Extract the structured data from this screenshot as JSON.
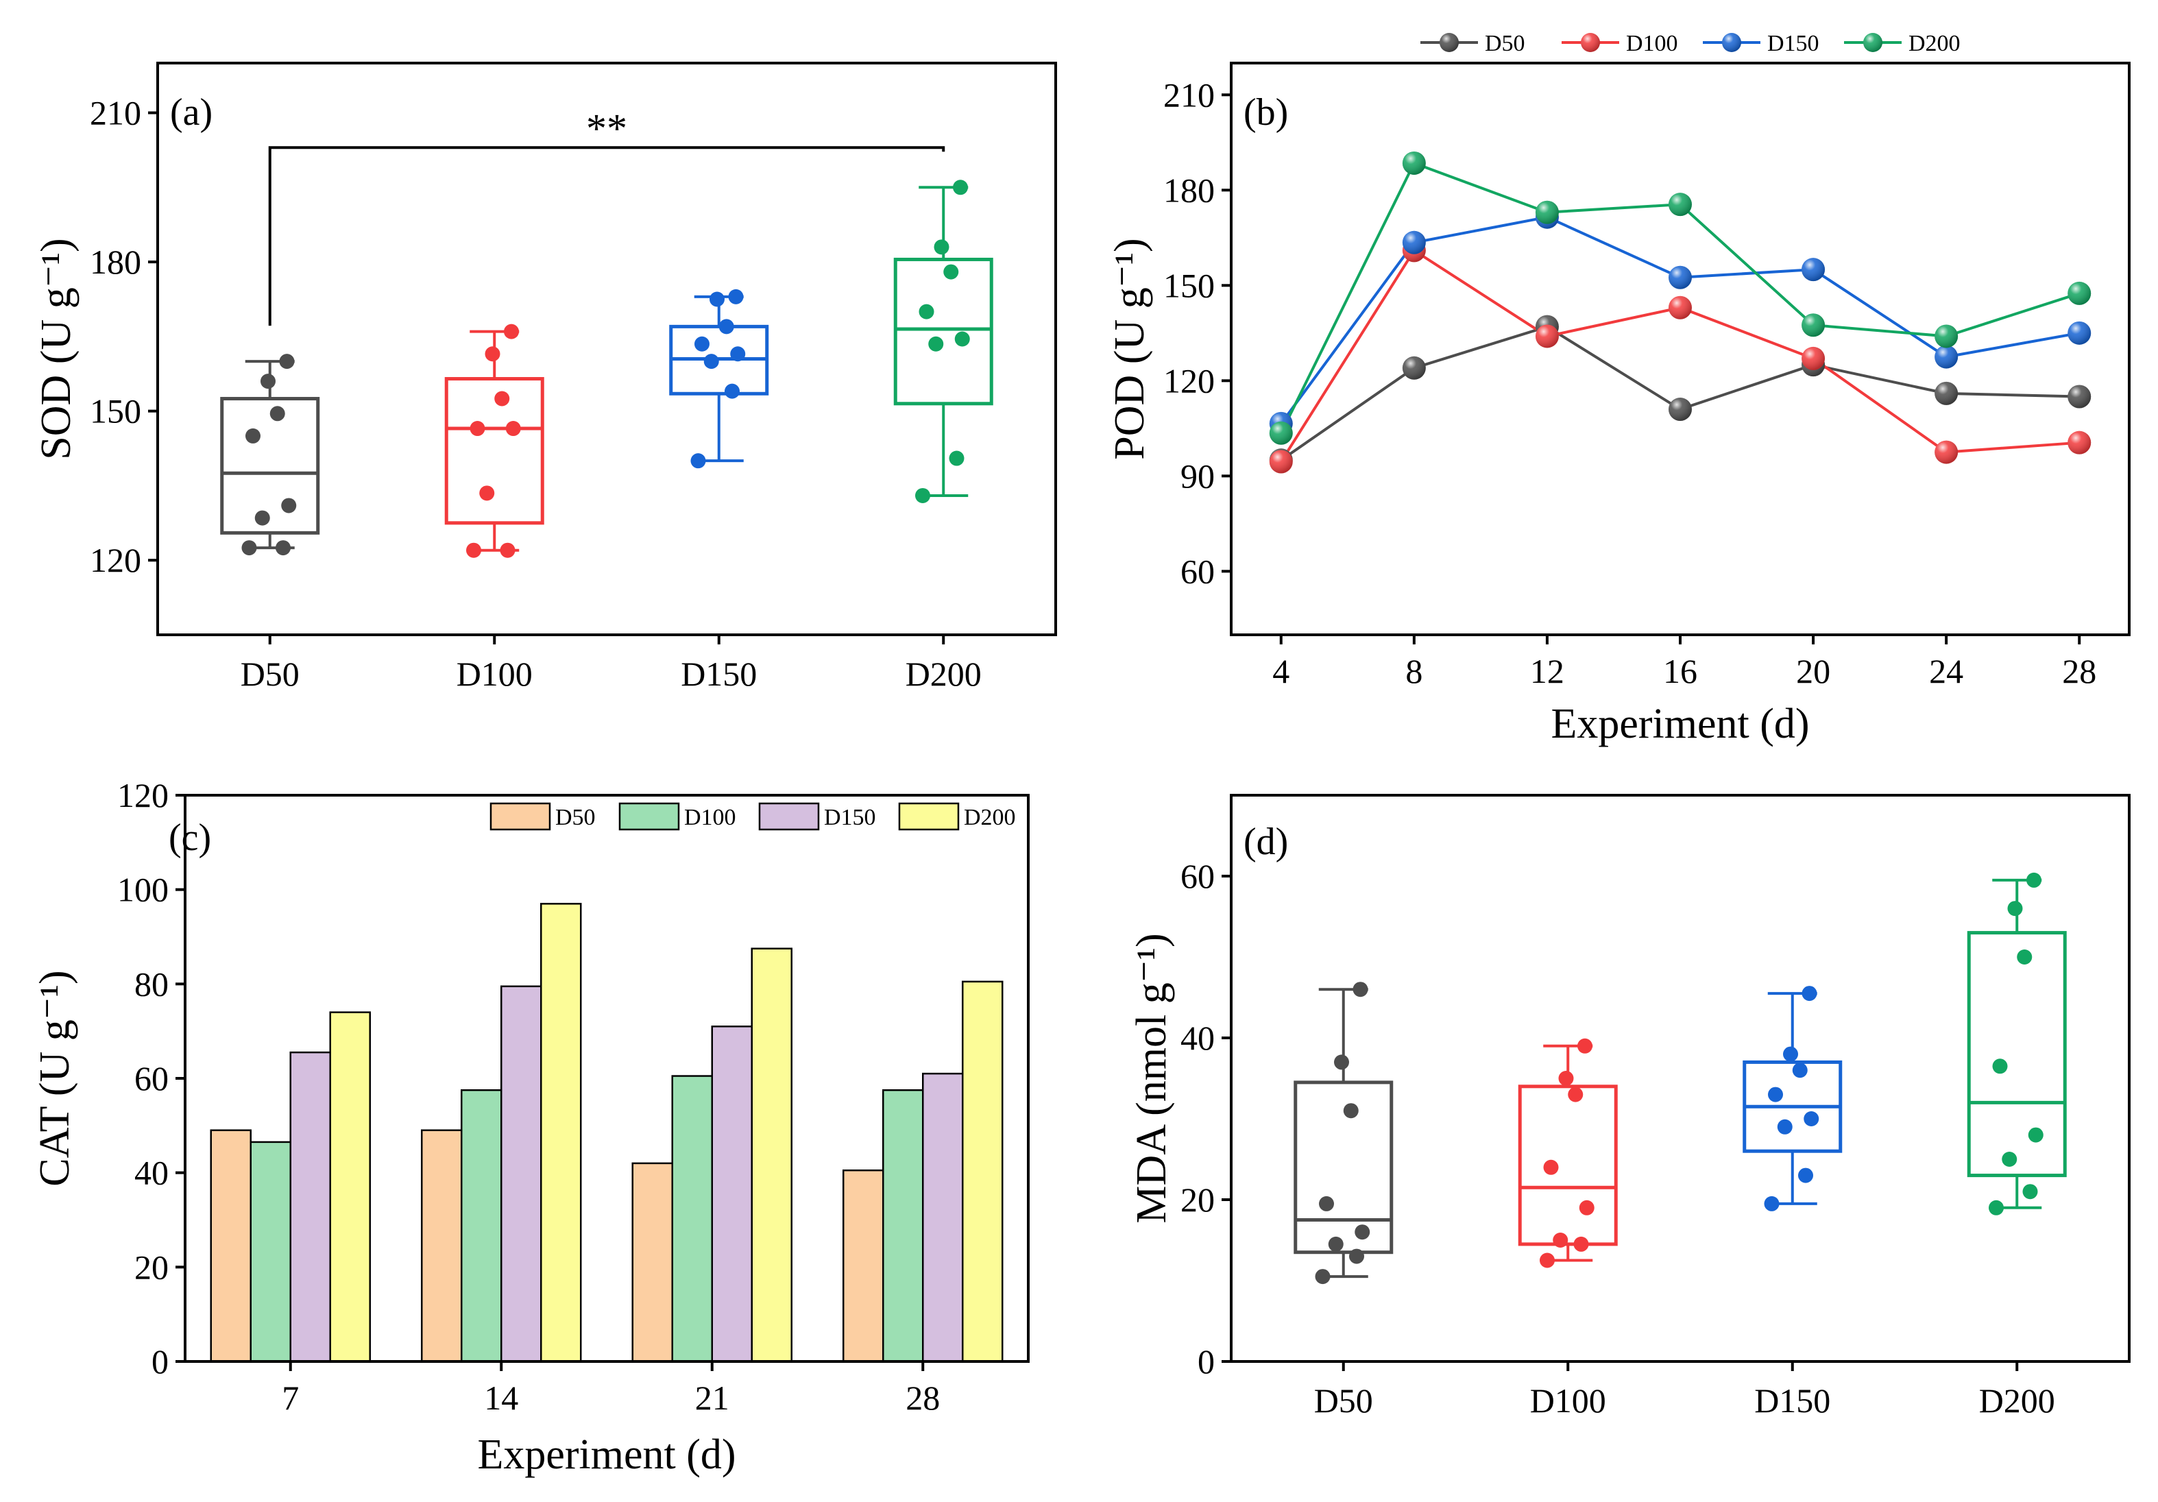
{
  "chart_data": [
    {
      "id": "a",
      "type": "box",
      "panel_label": "(a)",
      "ylabel": "SOD (U g⁻¹)",
      "xlabel": "",
      "ylim": [
        105,
        220
      ],
      "yticks": [
        120,
        150,
        180,
        210
      ],
      "categories": [
        "D50",
        "D100",
        "D150",
        "D200"
      ],
      "colors": [
        "#4d4d4d",
        "#f23a3c",
        "#1764d4",
        "#12a661"
      ],
      "boxes": [
        {
          "q1": 125.5,
          "median": 137.5,
          "q3": 152.5,
          "whisker_low": 122.5,
          "whisker_high": 160,
          "points": [
            122.5,
            122.5,
            128.5,
            131,
            145,
            149.5,
            156,
            160
          ]
        },
        {
          "q1": 127.5,
          "median": 146.5,
          "q3": 156.5,
          "whisker_low": 122,
          "whisker_high": 166,
          "points": [
            122,
            122,
            133.5,
            146.5,
            146.5,
            152.5,
            161.5,
            166
          ]
        },
        {
          "q1": 153.5,
          "median": 160.5,
          "q3": 167,
          "whisker_low": 140,
          "whisker_high": 173,
          "points": [
            140,
            154,
            160,
            161.5,
            163.5,
            167,
            172.5,
            173
          ]
        },
        {
          "q1": 151.5,
          "median": 166.5,
          "q3": 180.5,
          "whisker_low": 133,
          "whisker_high": 195,
          "points": [
            133,
            140.5,
            163.5,
            164.5,
            170,
            178,
            183,
            195
          ]
        }
      ],
      "annotation": {
        "text": "**",
        "from": "D50",
        "to": "D200",
        "level": 203
      }
    },
    {
      "id": "b",
      "type": "line",
      "panel_label": "(b)",
      "ylabel": "POD (U g⁻¹)",
      "xlabel": "Experiment (d)",
      "x": [
        4,
        8,
        12,
        16,
        20,
        24,
        28
      ],
      "xlim": [
        2.5,
        29.5
      ],
      "ylim": [
        40,
        220
      ],
      "yticks": [
        60,
        90,
        120,
        150,
        180,
        210
      ],
      "legend": "top",
      "series": [
        {
          "name": "D50",
          "color": "#4d4d4d",
          "values": [
            95,
            124,
            137,
            111,
            125,
            116,
            115
          ]
        },
        {
          "name": "D100",
          "color": "#f23a3c",
          "values": [
            94.5,
            161,
            134,
            143,
            127,
            97.5,
            100.5
          ]
        },
        {
          "name": "D150",
          "color": "#1764d4",
          "values": [
            106.5,
            163.5,
            171.5,
            152.5,
            155,
            127.5,
            135
          ]
        },
        {
          "name": "D200",
          "color": "#12a661",
          "values": [
            103.5,
            188.5,
            173,
            175.5,
            137.5,
            134,
            147.5
          ]
        }
      ]
    },
    {
      "id": "c",
      "type": "bar",
      "panel_label": "(c)",
      "ylabel": "CAT (U g⁻¹)",
      "xlabel": "Experiment (d)",
      "categories": [
        "7",
        "14",
        "21",
        "28"
      ],
      "ylim": [
        0,
        120
      ],
      "yticks": [
        0,
        20,
        40,
        60,
        80,
        100,
        120
      ],
      "legend": "top-right",
      "series": [
        {
          "name": "D50",
          "color": "#fccfa2",
          "values": [
            49,
            49,
            42,
            40.5
          ]
        },
        {
          "name": "D100",
          "color": "#9cdfb3",
          "values": [
            46.5,
            57.5,
            60.5,
            57.5
          ]
        },
        {
          "name": "D150",
          "color": "#d5bfdf",
          "values": [
            65.5,
            79.5,
            71,
            61
          ]
        },
        {
          "name": "D200",
          "color": "#fcfc98",
          "values": [
            74,
            97,
            87.5,
            80.5
          ]
        }
      ]
    },
    {
      "id": "d",
      "type": "box",
      "panel_label": "(d)",
      "ylabel": "MDA (nmol g⁻¹)",
      "xlabel": "",
      "ylim": [
        0,
        70
      ],
      "yticks": [
        0,
        20,
        40,
        60
      ],
      "categories": [
        "D50",
        "D100",
        "D150",
        "D200"
      ],
      "colors": [
        "#4d4d4d",
        "#f23a3c",
        "#1764d4",
        "#12a661"
      ],
      "boxes": [
        {
          "q1": 13.5,
          "median": 17.5,
          "q3": 34.5,
          "whisker_low": 10.5,
          "whisker_high": 46,
          "points": [
            10.5,
            13,
            14.5,
            16,
            19.5,
            31,
            37,
            46
          ]
        },
        {
          "q1": 14.5,
          "median": 21.5,
          "q3": 34,
          "whisker_low": 12.5,
          "whisker_high": 39,
          "points": [
            12.5,
            14.5,
            15,
            19,
            24,
            33,
            35,
            39
          ]
        },
        {
          "q1": 26,
          "median": 31.5,
          "q3": 37,
          "whisker_low": 19.5,
          "whisker_high": 45.5,
          "points": [
            19.5,
            23,
            29,
            30,
            33,
            36,
            38,
            45.5
          ]
        },
        {
          "q1": 23,
          "median": 32,
          "q3": 53,
          "whisker_low": 19,
          "whisker_high": 59.5,
          "points": [
            19,
            21,
            25,
            28,
            36.5,
            50,
            56,
            59.5
          ]
        }
      ]
    }
  ]
}
